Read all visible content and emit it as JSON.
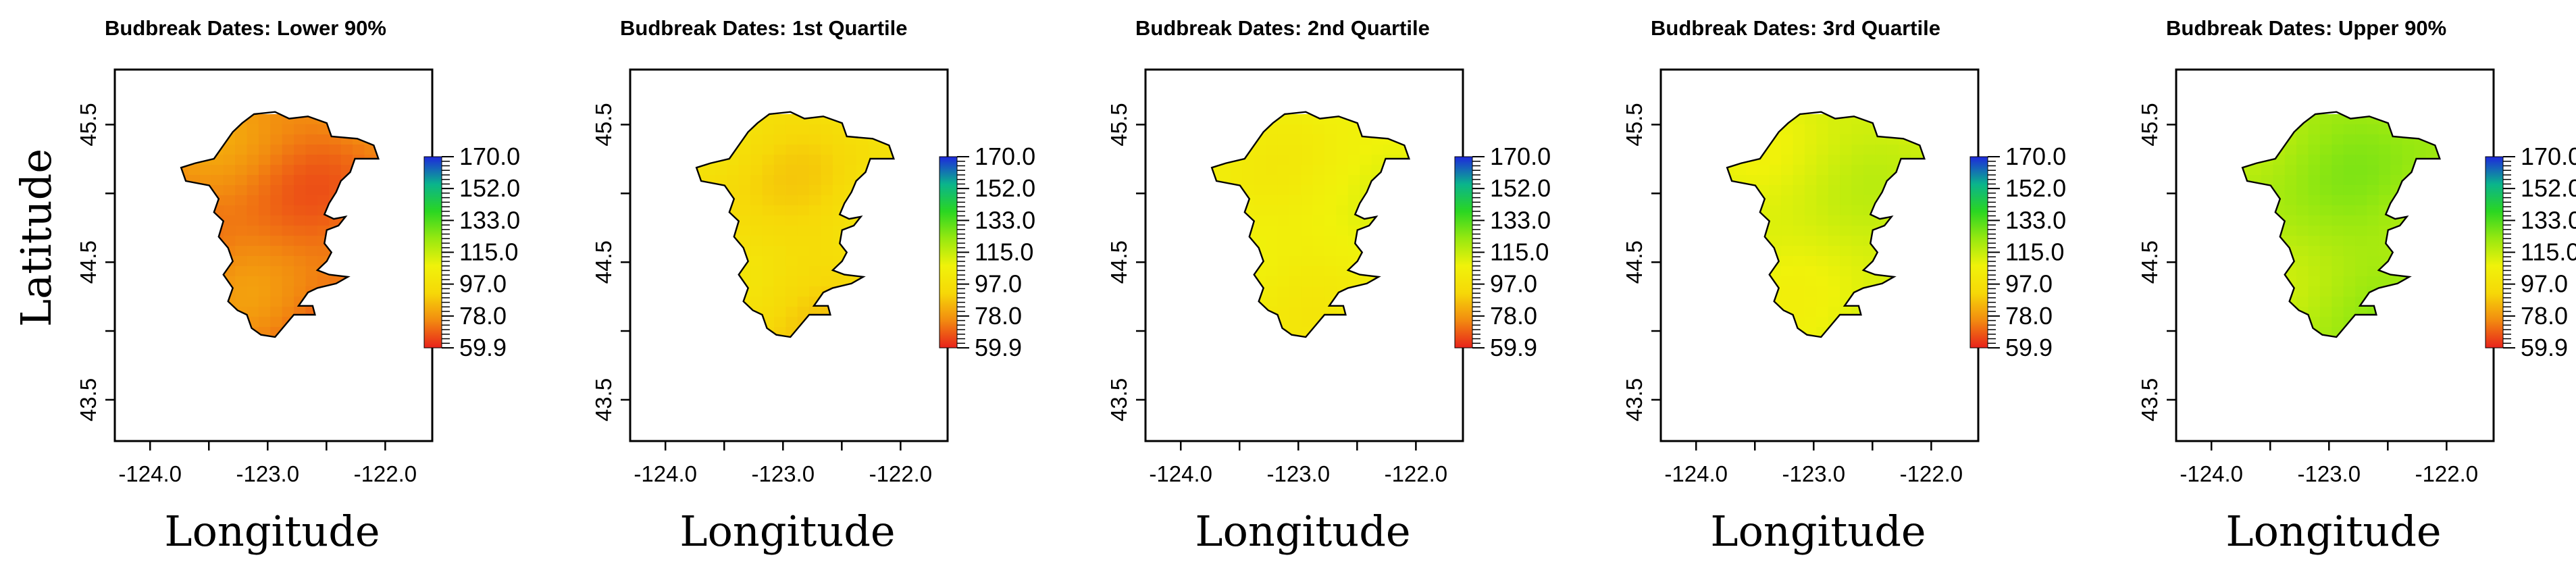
{
  "figure": {
    "ylabel": "Latitude",
    "xlabel": "Longitude"
  },
  "colorbar": {
    "ticks": [
      "170.0",
      "152.0",
      "133.0",
      "115.0",
      "97.0",
      "78.0",
      "59.9"
    ],
    "min": 59.9,
    "max": 170.0,
    "colors": [
      "#e8221b",
      "#f28a10",
      "#f6d808",
      "#f0f20a",
      "#98e810",
      "#2ad622",
      "#0ab48c",
      "#1e28dc"
    ]
  },
  "chart_data": [
    {
      "type": "heatmap",
      "title": "Budbreak Dates: Lower 90%",
      "x_ticks": [
        "-124.0",
        "-123.0",
        "-122.0"
      ],
      "y_ticks": [
        "45.5",
        "44.5",
        "43.5"
      ],
      "xlim": [
        -124.3,
        -121.6
      ],
      "ylim": [
        43.2,
        45.9
      ],
      "approx_value_range": [
        62,
        85
      ],
      "dominant_color": "#ef8c1a"
    },
    {
      "type": "heatmap",
      "title": "Budbreak Dates: 1st Quartile",
      "x_ticks": [
        "-124.0",
        "-123.0",
        "-122.0"
      ],
      "y_ticks": [
        "45.5",
        "44.5",
        "43.5"
      ],
      "xlim": [
        -124.3,
        -121.6
      ],
      "ylim": [
        43.2,
        45.9
      ],
      "approx_value_range": [
        84,
        104
      ],
      "dominant_color": "#e8ea2a"
    },
    {
      "type": "heatmap",
      "title": "Budbreak Dates: 2nd Quartile",
      "x_ticks": [
        "-124.0",
        "-123.0",
        "-122.0"
      ],
      "y_ticks": [
        "45.5",
        "44.5",
        "43.5"
      ],
      "xlim": [
        -124.3,
        -121.6
      ],
      "ylim": [
        43.2,
        45.9
      ],
      "approx_value_range": [
        98,
        112
      ],
      "dominant_color": "#b4e82a"
    },
    {
      "type": "heatmap",
      "title": "Budbreak Dates: 3rd Quartile",
      "x_ticks": [
        "-124.0",
        "-123.0",
        "-122.0"
      ],
      "y_ticks": [
        "45.5",
        "44.5",
        "43.5"
      ],
      "xlim": [
        -124.3,
        -121.6
      ],
      "ylim": [
        43.2,
        45.9
      ],
      "approx_value_range": [
        104,
        118
      ],
      "dominant_color": "#86e21e"
    },
    {
      "type": "heatmap",
      "title": "Budbreak Dates: Upper 90%",
      "x_ticks": [
        "-124.0",
        "-123.0",
        "-122.0"
      ],
      "y_ticks": [
        "45.5",
        "44.5",
        "43.5"
      ],
      "xlim": [
        -124.3,
        -121.6
      ],
      "ylim": [
        43.2,
        45.9
      ],
      "approx_value_range": [
        112,
        128
      ],
      "dominant_color": "#3ed22a"
    }
  ]
}
